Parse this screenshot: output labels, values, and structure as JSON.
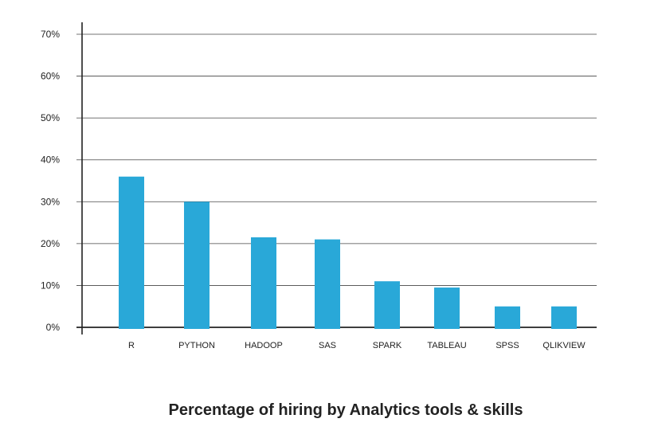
{
  "chart_data": {
    "type": "bar",
    "title": "Percentage of hiring by Analytics tools & skills",
    "categories": [
      "R",
      "PYTHON",
      "HADOOP",
      "SAS",
      "SPARK",
      "TABLEAU",
      "SPSS",
      "QLIKVIEW"
    ],
    "values": [
      36,
      30,
      21.5,
      21,
      11,
      9.5,
      5,
      5
    ],
    "y_ticks": [
      "0%",
      "10%",
      "20%",
      "30%",
      "40%",
      "50%",
      "60%",
      "70%"
    ],
    "ylim": [
      0,
      70
    ],
    "grid": true,
    "bar_color": "#29A8D8"
  }
}
